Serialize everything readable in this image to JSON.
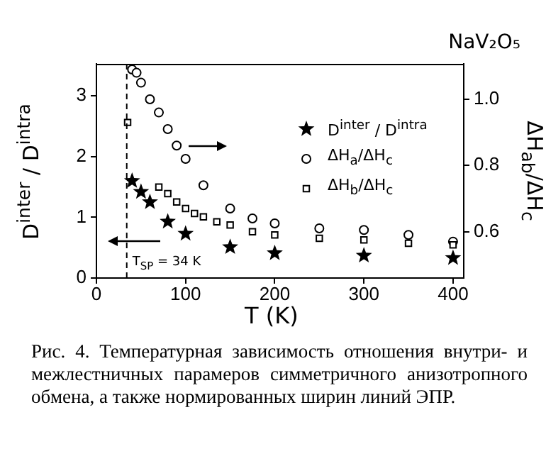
{
  "chart_data": {
    "type": "scatter",
    "title": "NaV₂O₅",
    "xlabel": "T (K)",
    "ylabel": "D$^{inter}$ / D$^{intra}$",
    "y2label": "ΔH$_{ab}$/ΔH$_{c}$",
    "xlim": [
      0,
      412
    ],
    "xticks": [
      0,
      100,
      200,
      300,
      400
    ],
    "ylim": [
      0,
      3.53
    ],
    "yticks": [
      0,
      1,
      2,
      3
    ],
    "y2lim": [
      0.46,
      1.107
    ],
    "y2ticks": [
      {
        "value": 0.6,
        "label": "0.6"
      },
      {
        "value": 0.8,
        "label": "0.8"
      },
      {
        "value": 1,
        "label": "1.0"
      }
    ],
    "grid": false,
    "legend": "right",
    "series": [
      {
        "name": "D$^{inter}$ / D$^{intra}$",
        "color": "#000000",
        "marker": "star",
        "x": [
          40,
          50,
          60,
          80,
          100,
          150,
          200,
          300,
          400
        ],
        "values": [
          1.6,
          1.42,
          1.25,
          0.93,
          0.73,
          0.51,
          0.41,
          0.37,
          0.33
        ]
      },
      {
        "name": "ΔH$_{a}$/ΔH$_{c}$",
        "color": "#000000",
        "marker": "circle",
        "axis": "y2",
        "x": [
          40,
          45,
          50,
          60,
          70,
          80,
          90,
          100,
          120,
          150,
          175,
          200,
          250,
          300,
          350,
          400
        ],
        "values": [
          1.09,
          1.08,
          1.05,
          1.0,
          0.96,
          0.91,
          0.86,
          0.82,
          0.74,
          0.67,
          0.64,
          0.625,
          0.61,
          0.605,
          0.59,
          0.57
        ]
      },
      {
        "name": "ΔH$_{b}$/ΔH$_{c}$",
        "color": "#000000",
        "marker": "square",
        "axis": "y2",
        "x": [
          35,
          70,
          80,
          90,
          100,
          110,
          120,
          135,
          150,
          175,
          200,
          250,
          300,
          350,
          400
        ],
        "values": [
          0.93,
          0.735,
          0.715,
          0.69,
          0.67,
          0.655,
          0.645,
          0.63,
          0.62,
          0.6,
          0.59,
          0.58,
          0.575,
          0.565,
          0.56
        ]
      }
    ],
    "ref_lines": [
      {
        "axis": "x",
        "value": 34,
        "label": "T$_{SP}$ = 34 K",
        "line_style": "dashed",
        "color": "#000000"
      }
    ],
    "annotations": [
      "Рис. 4. Температурная зависимость отношения внутри- и межлестничных парамеров симметричного анизотропного обмена, а также нормированных ширин линий ЭПР."
    ]
  }
}
